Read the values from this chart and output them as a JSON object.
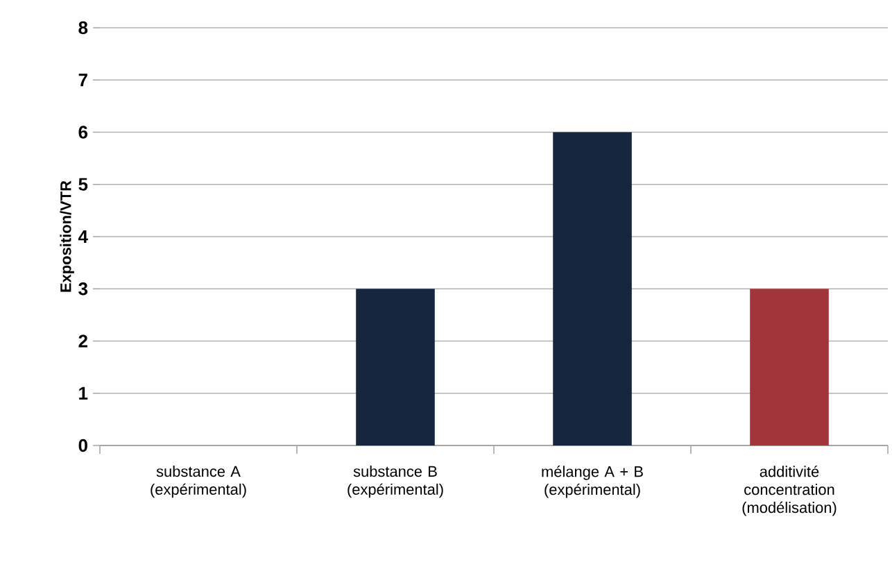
{
  "chart_data": {
    "type": "bar",
    "ylabel": "Exposition/VTR",
    "categories": [
      "substance A (expérimental)",
      "substance B (expérimental)",
      "mélange A + B (expérimental)",
      "additivité concentration (modélisation)"
    ],
    "values": [
      0,
      3,
      6,
      3
    ],
    "colors": [
      "#17263f",
      "#17263f",
      "#17263f",
      "#a0363a"
    ],
    "ylim": [
      0,
      8
    ],
    "yticks": [
      0,
      1,
      2,
      3,
      4,
      5,
      6,
      7,
      8
    ],
    "grid": "y"
  }
}
